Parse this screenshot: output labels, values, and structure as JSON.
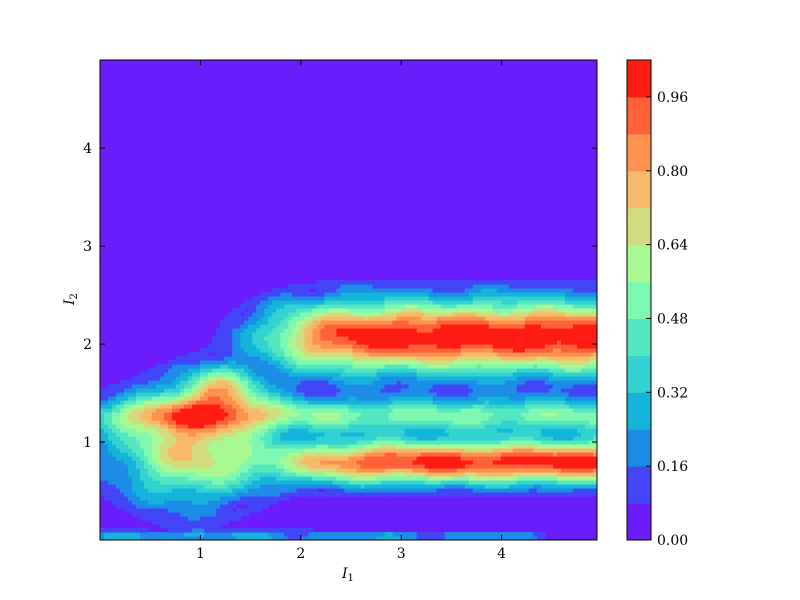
{
  "chart_data": {
    "type": "heatmap",
    "subtype": "filled-contour",
    "x_range": [
      0.0,
      4.95
    ],
    "y_range": [
      0.0,
      4.9
    ],
    "x_ticks": [
      1,
      2,
      3,
      4
    ],
    "y_ticks": [
      1,
      2,
      3,
      4
    ],
    "xlabel": {
      "main": "I",
      "sub": "1"
    },
    "ylabel": {
      "main": "I",
      "sub": "2"
    },
    "colorbar": {
      "range": [
        0.0,
        1.04
      ],
      "ticks": [
        "0.00",
        "0.16",
        "0.32",
        "0.48",
        "0.64",
        "0.80",
        "0.96"
      ],
      "levels": [
        0.0,
        0.08,
        0.16,
        0.24,
        0.32,
        0.4,
        0.48,
        0.56,
        0.64,
        0.72,
        0.8,
        0.88,
        0.96,
        1.04
      ],
      "colors": [
        "#6a1cfc",
        "#4545f8",
        "#1c8ce7",
        "#14b4db",
        "#32d2d0",
        "#55e8c0",
        "#7ef8b0",
        "#a8f893",
        "#d0dc7e",
        "#f8b86a",
        "#ff914e",
        "#ff6138",
        "#ff1c14"
      ]
    },
    "regions": [
      {
        "name": "upper band",
        "approx_value": 1.0,
        "x_extent": [
          1.7,
          4.95
        ],
        "y_extent": [
          1.5,
          2.7
        ]
      },
      {
        "name": "middle band",
        "approx_value": 0.4,
        "x_extent": [
          0.0,
          4.95
        ],
        "y_extent": [
          1.1,
          1.45
        ]
      },
      {
        "name": "lower band",
        "approx_value": 1.0,
        "x_extent": [
          2.0,
          4.95
        ],
        "y_extent": [
          0.55,
          1.0
        ]
      },
      {
        "name": "left blob",
        "approx_value": 0.6,
        "x_extent": [
          0.0,
          2.0
        ],
        "y_extent": [
          0.3,
          1.8
        ]
      },
      {
        "name": "bottom strip",
        "approx_value": 0.2,
        "x_extent": [
          0.0,
          4.5
        ],
        "y_extent": [
          0.0,
          0.1
        ]
      }
    ]
  }
}
